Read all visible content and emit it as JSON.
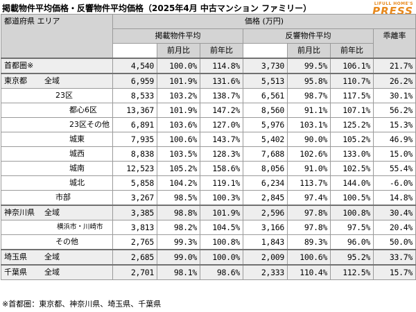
{
  "title": "掲載物件平均価格・反響物件平均価格（2025年4月 中古マンション ファミリー）",
  "brand": {
    "line1": "LIFULL HOME'S",
    "line2": "PRESS"
  },
  "header": {
    "area": "都道府県 エリア",
    "price": "価格 (万円)",
    "listed": "掲載物件平均",
    "response": "反響物件平均",
    "divergence": "乖離率",
    "mom": "前月比",
    "yoy": "前年比"
  },
  "rows": [
    {
      "area": "首都圏※",
      "listed": "4,540",
      "listed_mom": "100.0%",
      "listed_yoy": "114.8%",
      "resp": "3,730",
      "resp_mom": "99.5%",
      "resp_yoy": "106.1%",
      "div": "21.7%"
    },
    {
      "pref": "東京都",
      "sub": "全域",
      "listed": "6,959",
      "listed_mom": "101.9%",
      "listed_yoy": "131.6%",
      "resp": "5,513",
      "resp_mom": "95.8%",
      "resp_yoy": "110.7%",
      "div": "26.2%"
    },
    {
      "area": "23区",
      "listed": "8,533",
      "listed_mom": "103.2%",
      "listed_yoy": "138.7%",
      "resp": "6,561",
      "resp_mom": "98.7%",
      "resp_yoy": "117.5%",
      "div": "30.1%"
    },
    {
      "area": "都心6区",
      "listed": "13,367",
      "listed_mom": "101.9%",
      "listed_yoy": "147.2%",
      "resp": "8,560",
      "resp_mom": "91.1%",
      "resp_yoy": "107.1%",
      "div": "56.2%"
    },
    {
      "area": "23区その他",
      "listed": "6,891",
      "listed_mom": "103.6%",
      "listed_yoy": "127.0%",
      "resp": "5,976",
      "resp_mom": "103.1%",
      "resp_yoy": "125.2%",
      "div": "15.3%"
    },
    {
      "area": "城東",
      "listed": "7,935",
      "listed_mom": "100.6%",
      "listed_yoy": "143.7%",
      "resp": "5,402",
      "resp_mom": "90.0%",
      "resp_yoy": "105.2%",
      "div": "46.9%"
    },
    {
      "area": "城西",
      "listed": "8,838",
      "listed_mom": "103.5%",
      "listed_yoy": "128.3%",
      "resp": "7,688",
      "resp_mom": "102.6%",
      "resp_yoy": "133.0%",
      "div": "15.0%"
    },
    {
      "area": "城南",
      "listed": "12,523",
      "listed_mom": "105.2%",
      "listed_yoy": "158.6%",
      "resp": "8,056",
      "resp_mom": "91.0%",
      "resp_yoy": "102.5%",
      "div": "55.4%"
    },
    {
      "area": "城北",
      "listed": "5,858",
      "listed_mom": "104.2%",
      "listed_yoy": "119.1%",
      "resp": "6,234",
      "resp_mom": "113.7%",
      "resp_yoy": "144.0%",
      "div": "-6.0%"
    },
    {
      "area": "市部",
      "listed": "3,267",
      "listed_mom": "98.5%",
      "listed_yoy": "100.3%",
      "resp": "2,845",
      "resp_mom": "97.4%",
      "resp_yoy": "100.5%",
      "div": "14.8%"
    },
    {
      "pref": "神奈川県",
      "sub": "全域",
      "listed": "3,385",
      "listed_mom": "98.8%",
      "listed_yoy": "101.9%",
      "resp": "2,596",
      "resp_mom": "97.8%",
      "resp_yoy": "100.8%",
      "div": "30.4%"
    },
    {
      "area": "横浜市・川崎市",
      "listed": "3,813",
      "listed_mom": "98.2%",
      "listed_yoy": "104.5%",
      "resp": "3,166",
      "resp_mom": "97.8%",
      "resp_yoy": "97.5%",
      "div": "20.4%"
    },
    {
      "area": "その他",
      "listed": "2,765",
      "listed_mom": "99.3%",
      "listed_yoy": "100.8%",
      "resp": "1,843",
      "resp_mom": "89.3%",
      "resp_yoy": "96.0%",
      "div": "50.0%"
    },
    {
      "pref": "埼玉県",
      "sub": "全域",
      "listed": "2,685",
      "listed_mom": "99.0%",
      "listed_yoy": "100.0%",
      "resp": "2,009",
      "resp_mom": "100.6%",
      "resp_yoy": "95.2%",
      "div": "33.7%"
    },
    {
      "pref": "千葉県",
      "sub": "全域",
      "listed": "2,701",
      "listed_mom": "98.1%",
      "listed_yoy": "98.6%",
      "resp": "2,333",
      "resp_mom": "110.4%",
      "resp_yoy": "112.5%",
      "div": "15.7%"
    }
  ],
  "note": "※首都圏：東京都、神奈川県、埼玉県、千葉県"
}
